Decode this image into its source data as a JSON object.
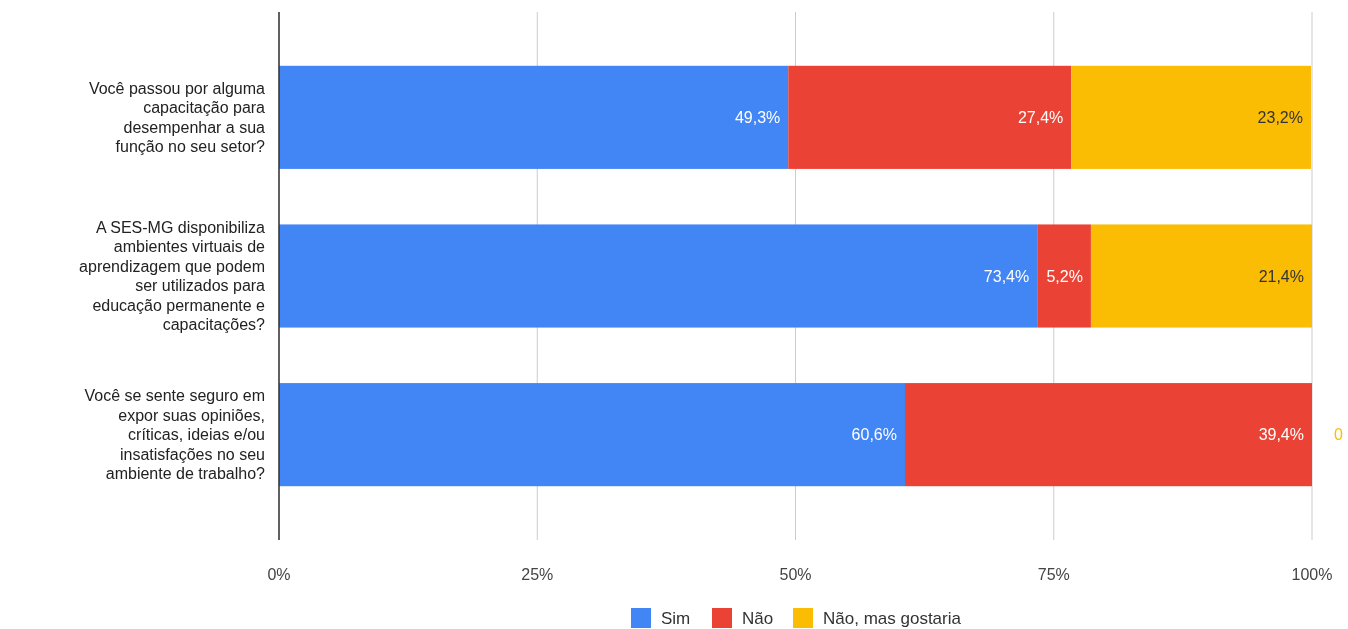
{
  "chart_data": {
    "type": "bar",
    "orientation": "horizontal",
    "stacked": true,
    "categories": [
      "Você passou por alguma capacitação para desempenhar a sua função no seu setor?",
      "A SES-MG disponibiliza ambientes virtuais de aprendizagem que podem ser utilizados para educação permanente e capacitações?",
      "Você se sente seguro em expor suas opiniões, críticas, ideias e/ou insatisfações no seu ambiente de trabalho?"
    ],
    "series": [
      {
        "name": "Sim",
        "color": "#4285f4",
        "values": [
          49.3,
          73.4,
          60.6
        ],
        "value_labels": [
          "49,3%",
          "73,4%",
          "60,6%"
        ]
      },
      {
        "name": "Não",
        "color": "#ea4335",
        "values": [
          27.4,
          5.2,
          39.4
        ],
        "value_labels": [
          "27,4%",
          "5,2%",
          "39,4%"
        ]
      },
      {
        "name": "Não, mas gostaria",
        "color": "#fbbc04",
        "values": [
          23.2,
          21.4,
          0
        ],
        "value_labels": [
          "23,2%",
          "21,4%",
          "0"
        ]
      }
    ],
    "xlim": [
      0,
      100
    ],
    "xticks": [
      {
        "value": 0,
        "label": "0%"
      },
      {
        "value": 25,
        "label": "25%"
      },
      {
        "value": 50,
        "label": "50%"
      },
      {
        "value": 75,
        "label": "75%"
      },
      {
        "value": 100,
        "label": "100%"
      }
    ],
    "grid": "x",
    "legend": "bottom"
  }
}
